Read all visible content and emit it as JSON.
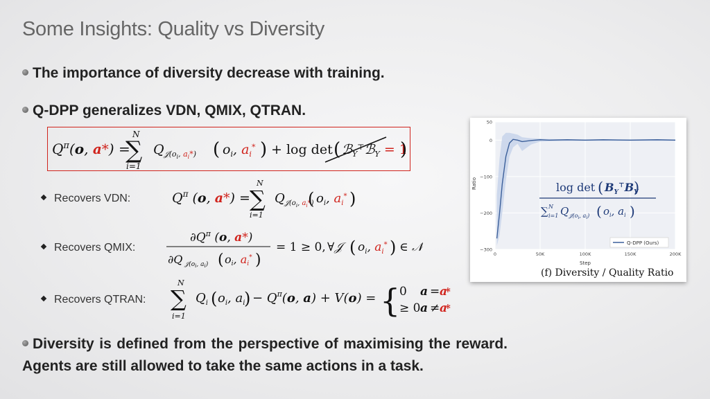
{
  "slide": {
    "title": "Some Insights: Quality vs Diversity",
    "bullets": {
      "b1": "The importance of diversity decrease with training.",
      "b2": "Q-DPP generalizes VDN, QMIX, QTRAN.",
      "b3": "Diversity is defined from the perspective of maximising the reward. Agents are still allowed to take the same actions in a task."
    },
    "sub_items": {
      "vdn": "Recovers VDN:",
      "qmix": "Recovers QMIX:",
      "qtran": "Recovers QTRAN:"
    }
  },
  "equations": {
    "main": {
      "lhs": "Q^π(o, a*) =",
      "sum": "Σ",
      "sum_top": "N",
      "sum_bottom": "i=1",
      "term": "Q_𝒥(o_i^t, a_i^*) (o_i, a_i^*)",
      "plus": "+ log det (ℬ_Y^⊤ ℬ_Y = 1)"
    },
    "vdn": "Q^π(o, a*) = Σ_{i=1}^{N} Q_𝒥(o_i, a_i^*) (o_i, a_i^*)",
    "qmix": {
      "numerator": "∂Q^π(o, a*)",
      "denominator": "∂Q_𝒥(o_i, a_i) (o_i, a_i^*)",
      "rhs": "= 1 ≥ 0,   ∀𝒥 (o_i, a_i^*) ∈ 𝒩"
    },
    "qtran": {
      "lhs": "Σ_{i=1}^{N} Q_i(o_i, a_i) − Q^π(o, a) + V(o) =",
      "case1_val": "0",
      "case1_cond": "a = a*",
      "case2_val": "≥ 0",
      "case2_cond": "a ≠ a*"
    }
  },
  "figure": {
    "caption": "(f) Diversity / Quality Ratio",
    "overlay_numerator": "log det (B_Y^⊤ B_Y)",
    "overlay_denominator": "Σ_{i=1}^{N} Q_𝒥(o_i, a_i) (o_i, a_i)",
    "colors": {
      "line": "#3b5f9a",
      "band": "#c7d4ea",
      "red": "#d0231c"
    }
  },
  "chart_data": {
    "type": "line",
    "xlabel": "Step",
    "ylabel": "Ratio",
    "xlim": [
      0,
      200000
    ],
    "ylim": [
      -300,
      50
    ],
    "x_ticks": [
      {
        "v": 0,
        "label": "0"
      },
      {
        "v": 50000,
        "label": "50K"
      },
      {
        "v": 100000,
        "label": "100K"
      },
      {
        "v": 150000,
        "label": "150K"
      },
      {
        "v": 200000,
        "label": "200K"
      }
    ],
    "y_ticks": [
      {
        "v": 50,
        "label": "50"
      },
      {
        "v": 0,
        "label": "0"
      },
      {
        "v": -100,
        "label": "−100"
      },
      {
        "v": -200,
        "label": "−200"
      },
      {
        "v": -300,
        "label": "−300"
      }
    ],
    "grid": true,
    "legend": "bottom-right",
    "series": [
      {
        "name": "Q-DPP (Ours)",
        "x": [
          2000,
          5000,
          8000,
          12000,
          16000,
          20000,
          25000,
          30000,
          40000,
          50000,
          60000,
          80000,
          100000,
          120000,
          150000,
          180000,
          200000
        ],
        "y": [
          -270,
          -200,
          -120,
          -45,
          -8,
          2,
          0,
          -4,
          -1,
          1,
          0,
          1,
          0,
          1,
          0,
          1,
          0
        ],
        "band_lo": [
          -290,
          -260,
          -200,
          -110,
          -45,
          -20,
          -10,
          -30,
          -12,
          -4,
          -3,
          -2,
          -2,
          -2,
          -2,
          -2,
          -2
        ],
        "band_hi": [
          -150,
          -50,
          10,
          20,
          20,
          18,
          15,
          8,
          5,
          4,
          3,
          2,
          2,
          2,
          2,
          2,
          2
        ]
      }
    ]
  }
}
